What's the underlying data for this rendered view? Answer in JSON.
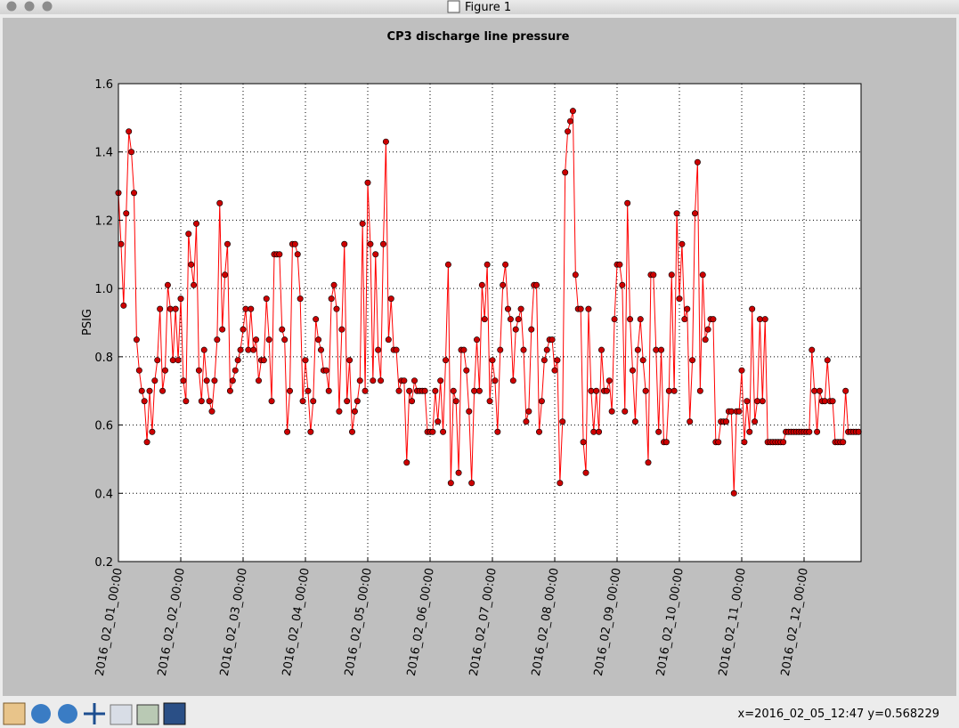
{
  "window": {
    "title": "Figure 1",
    "status": "x=2016_02_05_12:47 y=0.568229"
  },
  "chart_data": {
    "type": "line",
    "title": "CP3 discharge line pressure",
    "y_label": "PSIG",
    "color": "#ff0000",
    "marker_color": "#cc0000",
    "grid": true,
    "x": [
      "2016_02_01_00:00",
      "2016_02_01_01:00",
      "2016_02_01_02:00",
      "2016_02_01_03:00",
      "2016_02_01_04:00",
      "2016_02_01_05:00",
      "2016_02_01_06:00",
      "2016_02_01_07:00",
      "2016_02_01_08:00",
      "2016_02_01_09:00",
      "2016_02_01_10:00",
      "2016_02_01_11:00",
      "2016_02_01_12:00",
      "2016_02_01_13:00",
      "2016_02_01_14:00",
      "2016_02_01_15:00",
      "2016_02_01_16:00",
      "2016_02_01_17:00",
      "2016_02_01_18:00",
      "2016_02_01_19:00",
      "2016_02_01_20:00",
      "2016_02_01_21:00",
      "2016_02_01_22:00",
      "2016_02_01_23:00",
      "2016_02_02_00:00",
      "2016_02_02_01:00",
      "2016_02_02_02:00",
      "2016_02_02_03:00",
      "2016_02_02_04:00",
      "2016_02_02_05:00",
      "2016_02_02_06:00",
      "2016_02_02_07:00",
      "2016_02_02_08:00",
      "2016_02_02_09:00",
      "2016_02_02_10:00",
      "2016_02_02_11:00",
      "2016_02_02_12:00",
      "2016_02_02_13:00",
      "2016_02_02_14:00",
      "2016_02_02_15:00",
      "2016_02_02_16:00",
      "2016_02_02_17:00",
      "2016_02_02_18:00",
      "2016_02_02_19:00",
      "2016_02_02_20:00",
      "2016_02_02_21:00",
      "2016_02_02_22:00",
      "2016_02_02_23:00",
      "2016_02_03_00:00",
      "2016_02_03_01:00",
      "2016_02_03_02:00",
      "2016_02_03_03:00",
      "2016_02_03_04:00",
      "2016_02_03_05:00",
      "2016_02_03_06:00",
      "2016_02_03_07:00",
      "2016_02_03_08:00",
      "2016_02_03_09:00",
      "2016_02_03_10:00",
      "2016_02_03_11:00",
      "2016_02_03_12:00",
      "2016_02_03_13:00",
      "2016_02_03_14:00",
      "2016_02_03_15:00",
      "2016_02_03_16:00",
      "2016_02_03_17:00",
      "2016_02_03_18:00",
      "2016_02_03_19:00",
      "2016_02_03_20:00",
      "2016_02_03_21:00",
      "2016_02_03_22:00",
      "2016_02_03_23:00",
      "2016_02_04_00:00",
      "2016_02_04_01:00",
      "2016_02_04_02:00",
      "2016_02_04_03:00",
      "2016_02_04_04:00",
      "2016_02_04_05:00",
      "2016_02_04_06:00",
      "2016_02_04_07:00",
      "2016_02_04_08:00",
      "2016_02_04_09:00",
      "2016_02_04_10:00",
      "2016_02_04_11:00",
      "2016_02_04_12:00",
      "2016_02_04_13:00",
      "2016_02_04_14:00",
      "2016_02_04_15:00",
      "2016_02_04_16:00",
      "2016_02_04_17:00",
      "2016_02_04_18:00",
      "2016_02_04_19:00",
      "2016_02_04_20:00",
      "2016_02_04_21:00",
      "2016_02_04_22:00",
      "2016_02_04_23:00",
      "2016_02_05_00:00",
      "2016_02_05_01:00",
      "2016_02_05_02:00",
      "2016_02_05_03:00",
      "2016_02_05_04:00",
      "2016_02_05_05:00",
      "2016_02_05_06:00",
      "2016_02_05_07:00",
      "2016_02_05_08:00",
      "2016_02_05_09:00",
      "2016_02_05_10:00",
      "2016_02_05_11:00",
      "2016_02_05_12:00",
      "2016_02_05_13:00",
      "2016_02_05_14:00",
      "2016_02_05_15:00",
      "2016_02_05_16:00",
      "2016_02_05_17:00",
      "2016_02_05_18:00",
      "2016_02_05_19:00",
      "2016_02_05_20:00",
      "2016_02_05_21:00",
      "2016_02_05_22:00",
      "2016_02_05_23:00",
      "2016_02_06_00:00",
      "2016_02_06_01:00",
      "2016_02_06_02:00",
      "2016_02_06_03:00",
      "2016_02_06_04:00",
      "2016_02_06_05:00",
      "2016_02_06_06:00",
      "2016_02_06_07:00",
      "2016_02_06_08:00",
      "2016_02_06_09:00",
      "2016_02_06_10:00",
      "2016_02_06_11:00",
      "2016_02_06_12:00",
      "2016_02_06_13:00",
      "2016_02_06_14:00",
      "2016_02_06_15:00",
      "2016_02_06_16:00",
      "2016_02_06_17:00",
      "2016_02_06_18:00",
      "2016_02_06_19:00",
      "2016_02_06_20:00",
      "2016_02_06_21:00",
      "2016_02_06_22:00",
      "2016_02_06_23:00",
      "2016_02_07_00:00",
      "2016_02_07_01:00",
      "2016_02_07_02:00",
      "2016_02_07_03:00",
      "2016_02_07_04:00",
      "2016_02_07_05:00",
      "2016_02_07_06:00",
      "2016_02_07_07:00",
      "2016_02_07_08:00",
      "2016_02_07_09:00",
      "2016_02_07_10:00",
      "2016_02_07_11:00",
      "2016_02_07_12:00",
      "2016_02_07_13:00",
      "2016_02_07_14:00",
      "2016_02_07_15:00",
      "2016_02_07_16:00",
      "2016_02_07_17:00",
      "2016_02_07_18:00",
      "2016_02_07_19:00",
      "2016_02_07_20:00",
      "2016_02_07_21:00",
      "2016_02_07_22:00",
      "2016_02_07_23:00",
      "2016_02_08_00:00",
      "2016_02_08_01:00",
      "2016_02_08_02:00",
      "2016_02_08_03:00",
      "2016_02_08_04:00",
      "2016_02_08_05:00",
      "2016_02_08_06:00",
      "2016_02_08_07:00",
      "2016_02_08_08:00",
      "2016_02_08_09:00",
      "2016_02_08_10:00",
      "2016_02_08_11:00",
      "2016_02_08_12:00",
      "2016_02_08_13:00",
      "2016_02_08_14:00",
      "2016_02_08_15:00",
      "2016_02_08_16:00",
      "2016_02_08_17:00",
      "2016_02_08_18:00",
      "2016_02_08_19:00",
      "2016_02_08_20:00",
      "2016_02_08_21:00",
      "2016_02_08_22:00",
      "2016_02_08_23:00",
      "2016_02_09_00:00",
      "2016_02_09_01:00",
      "2016_02_09_02:00",
      "2016_02_09_03:00",
      "2016_02_09_04:00",
      "2016_02_09_05:00",
      "2016_02_09_06:00",
      "2016_02_09_07:00",
      "2016_02_09_08:00",
      "2016_02_09_09:00",
      "2016_02_09_10:00",
      "2016_02_09_11:00",
      "2016_02_09_12:00",
      "2016_02_09_13:00",
      "2016_02_09_14:00",
      "2016_02_09_15:00",
      "2016_02_09_16:00",
      "2016_02_09_17:00",
      "2016_02_09_18:00",
      "2016_02_09_19:00",
      "2016_02_09_20:00",
      "2016_02_09_21:00",
      "2016_02_09_22:00",
      "2016_02_09_23:00",
      "2016_02_10_00:00",
      "2016_02_10_01:00",
      "2016_02_10_02:00",
      "2016_02_10_03:00",
      "2016_02_10_04:00",
      "2016_02_10_05:00",
      "2016_02_10_06:00",
      "2016_02_10_07:00",
      "2016_02_10_08:00",
      "2016_02_10_09:00",
      "2016_02_10_10:00",
      "2016_02_10_11:00",
      "2016_02_10_12:00",
      "2016_02_10_13:00",
      "2016_02_10_14:00",
      "2016_02_10_15:00",
      "2016_02_10_16:00",
      "2016_02_10_17:00",
      "2016_02_10_18:00",
      "2016_02_10_19:00",
      "2016_02_10_20:00",
      "2016_02_10_21:00",
      "2016_02_10_22:00",
      "2016_02_10_23:00",
      "2016_02_11_00:00",
      "2016_02_11_01:00",
      "2016_02_11_02:00",
      "2016_02_11_03:00",
      "2016_02_11_04:00",
      "2016_02_11_05:00",
      "2016_02_11_06:00",
      "2016_02_11_07:00",
      "2016_02_11_08:00",
      "2016_02_11_09:00",
      "2016_02_11_10:00",
      "2016_02_11_11:00",
      "2016_02_11_12:00",
      "2016_02_11_13:00",
      "2016_02_11_14:00",
      "2016_02_11_15:00",
      "2016_02_11_16:00",
      "2016_02_11_17:00",
      "2016_02_11_18:00",
      "2016_02_11_19:00",
      "2016_02_11_20:00",
      "2016_02_11_21:00",
      "2016_02_11_22:00",
      "2016_02_11_23:00",
      "2016_02_12_00:00",
      "2016_02_12_01:00",
      "2016_02_12_02:00",
      "2016_02_12_03:00",
      "2016_02_12_04:00",
      "2016_02_12_05:00",
      "2016_02_12_06:00",
      "2016_02_12_07:00",
      "2016_02_12_08:00",
      "2016_02_12_09:00",
      "2016_02_12_10:00",
      "2016_02_12_11:00",
      "2016_02_12_12:00",
      "2016_02_12_13:00",
      "2016_02_12_14:00",
      "2016_02_12_15:00",
      "2016_02_12_16:00",
      "2016_02_12_17:00",
      "2016_02_12_18:00",
      "2016_02_12_19:00",
      "2016_02_12_20:00",
      "2016_02_12_21:00"
    ],
    "values": [
      1.28,
      1.13,
      0.95,
      1.22,
      1.46,
      1.4,
      1.28,
      0.85,
      0.76,
      0.7,
      0.67,
      0.55,
      0.7,
      0.58,
      0.73,
      0.79,
      0.94,
      0.7,
      0.76,
      1.01,
      0.94,
      0.79,
      0.94,
      0.79,
      0.97,
      0.73,
      0.67,
      1.16,
      1.07,
      1.01,
      1.19,
      0.76,
      0.67,
      0.82,
      0.73,
      0.67,
      0.64,
      0.73,
      0.85,
      1.25,
      0.88,
      1.04,
      1.13,
      0.7,
      0.73,
      0.76,
      0.79,
      0.82,
      0.88,
      0.94,
      0.82,
      0.94,
      0.82,
      0.85,
      0.73,
      0.79,
      0.79,
      0.97,
      0.85,
      0.67,
      1.1,
      1.1,
      1.1,
      0.88,
      0.85,
      0.58,
      0.7,
      1.13,
      1.13,
      1.1,
      0.97,
      0.67,
      0.79,
      0.7,
      0.58,
      0.67,
      0.91,
      0.85,
      0.82,
      0.76,
      0.76,
      0.7,
      0.97,
      1.01,
      0.94,
      0.64,
      0.88,
      1.13,
      0.67,
      0.79,
      0.58,
      0.64,
      0.67,
      0.73,
      1.19,
      0.7,
      1.31,
      1.13,
      0.73,
      1.1,
      0.82,
      0.73,
      1.13,
      1.43,
      0.85,
      0.97,
      0.82,
      0.82,
      0.7,
      0.73,
      0.73,
      0.49,
      0.7,
      0.67,
      0.73,
      0.7,
      0.7,
      0.7,
      0.7,
      0.58,
      0.58,
      0.58,
      0.7,
      0.61,
      0.73,
      0.58,
      0.79,
      1.07,
      0.43,
      0.7,
      0.67,
      0.46,
      0.82,
      0.82,
      0.76,
      0.64,
      0.43,
      0.7,
      0.85,
      0.7,
      1.01,
      0.91,
      1.07,
      0.67,
      0.79,
      0.73,
      0.58,
      0.82,
      1.01,
      1.07,
      0.94,
      0.91,
      0.73,
      0.88,
      0.91,
      0.94,
      0.82,
      0.61,
      0.64,
      0.88,
      1.01,
      1.01,
      0.58,
      0.67,
      0.79,
      0.82,
      0.85,
      0.85,
      0.76,
      0.79,
      0.43,
      0.61,
      1.34,
      1.46,
      1.49,
      1.52,
      1.04,
      0.94,
      0.94,
      0.55,
      0.46,
      0.94,
      0.7,
      0.58,
      0.7,
      0.58,
      0.82,
      0.7,
      0.7,
      0.73,
      0.64,
      0.91,
      1.07,
      1.07,
      1.01,
      0.64,
      1.25,
      0.91,
      0.76,
      0.61,
      0.82,
      0.91,
      0.79,
      0.7,
      0.49,
      1.04,
      1.04,
      0.82,
      0.58,
      0.82,
      0.55,
      0.55,
      0.7,
      1.04,
      0.7,
      1.22,
      0.97,
      1.13,
      0.91,
      0.94,
      0.61,
      0.79,
      1.22,
      1.37,
      0.7,
      1.04,
      0.85,
      0.88,
      0.91,
      0.91,
      0.55,
      0.55,
      0.61,
      0.61,
      0.61,
      0.64,
      0.64,
      0.4,
      0.64,
      0.64,
      0.76,
      0.55,
      0.67,
      0.58,
      0.94,
      0.61,
      0.67,
      0.91,
      0.67,
      0.91,
      0.55,
      0.55,
      0.55,
      0.55,
      0.55,
      0.55,
      0.55,
      0.58,
      0.58,
      0.58,
      0.58,
      0.58,
      0.58,
      0.58,
      0.58,
      0.58,
      0.58,
      0.82,
      0.7,
      0.58,
      0.7,
      0.67,
      0.67,
      0.79,
      0.67,
      0.67,
      0.55,
      0.55,
      0.55,
      0.55,
      0.7,
      0.58,
      0.58,
      0.58,
      0.58,
      0.58
    ],
    "xlim": [
      "2016_02_01_00:00",
      "2016_02_12_21:00"
    ],
    "xticks": [
      "2016_02_01_00:00",
      "2016_02_02_00:00",
      "2016_02_03_00:00",
      "2016_02_04_00:00",
      "2016_02_05_00:00",
      "2016_02_06_00:00",
      "2016_02_07_00:00",
      "2016_02_08_00:00",
      "2016_02_09_00:00",
      "2016_02_10_00:00",
      "2016_02_11_00:00",
      "2016_02_12_00:00"
    ],
    "ylim": [
      0.2,
      1.6
    ],
    "yticks": [
      0.2,
      0.4,
      0.6,
      0.8,
      {
        "value": 1,
        "label": "1.0"
      },
      1.2,
      1.4,
      1.6
    ]
  }
}
